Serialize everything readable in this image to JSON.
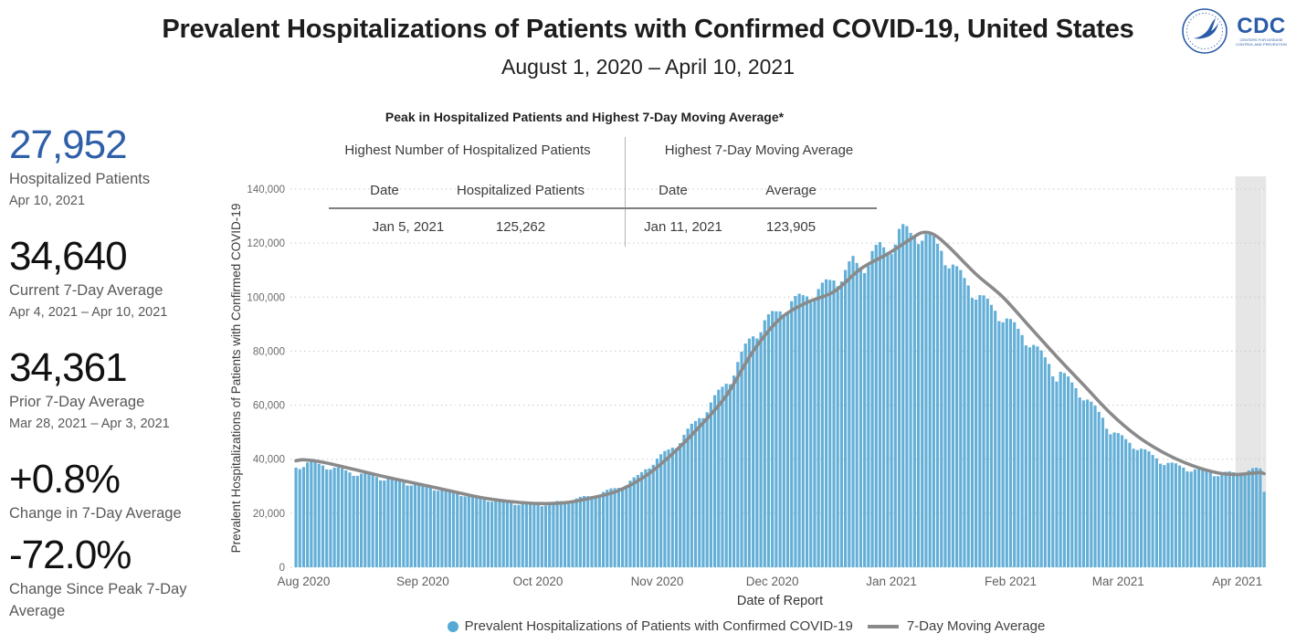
{
  "header": {
    "title": "Prevalent Hospitalizations of Patients with Confirmed COVID-19, United States",
    "subtitle": "August 1, 2020 – April 10, 2021",
    "logos": {
      "cdc_acronym": "CDC",
      "cdc_sub_line1": "CENTERS FOR DISEASE",
      "cdc_sub_line2": "CONTROL AND PREVENTION"
    }
  },
  "stats": {
    "items": [
      {
        "value": "27,952",
        "label": "Hospitalized Patients",
        "sublabel": "Apr 10, 2021",
        "color": "#2e5fa8"
      },
      {
        "value": "34,640",
        "label": "Current 7-Day Average",
        "sublabel": "Apr 4, 2021 – Apr 10, 2021",
        "color": "#111111"
      },
      {
        "value": "34,361",
        "label": "Prior 7-Day Average",
        "sublabel": "Mar 28, 2021 – Apr 3, 2021",
        "color": "#111111"
      },
      {
        "value": "+0.8%",
        "label": "Change in 7-Day Average",
        "sublabel": "",
        "color": "#111111"
      },
      {
        "value": "-72.0%",
        "label": "Change Since Peak 7-Day Average",
        "sublabel": "",
        "color": "#111111"
      }
    ]
  },
  "peak_table": {
    "title": "Peak in Hospitalized Patients and Highest 7-Day Moving Average*",
    "groups": [
      {
        "label": "Highest Number of Hospitalized Patients",
        "col1": "Date",
        "col2": "Hospitalized Patients",
        "date": "Jan 5, 2021",
        "value": "125,262"
      },
      {
        "label": "Highest 7-Day Moving Average",
        "col1": "Date",
        "col2": "Average",
        "date": "Jan 11, 2021",
        "value": "123,905"
      }
    ]
  },
  "axes": {
    "x_title": "Date of Report",
    "y_title": "Prevalent Hospitalizations of Patients with Confirmed COVID-19"
  },
  "legend": {
    "bar_label": "Prevalent Hospitalizations of Patients with Confirmed COVID-19",
    "line_label": "7-Day Moving Average"
  },
  "chart_data": {
    "type": "bar",
    "title": "Prevalent Hospitalizations of Patients with Confirmed COVID-19, United States",
    "xlabel": "Date of Report",
    "ylabel": "Prevalent Hospitalizations of Patients with Confirmed COVID-19",
    "x_start": "2020-08-01",
    "x_end": "2021-04-10",
    "n_days": 253,
    "ylim": [
      0,
      140000
    ],
    "y_ticks": [
      0,
      20000,
      40000,
      60000,
      80000,
      100000,
      120000,
      140000
    ],
    "y_tick_labels": [
      "0",
      "20,000",
      "40,000",
      "60,000",
      "80,000",
      "100,000",
      "120,000",
      "140,000"
    ],
    "x_ticks": [
      {
        "label": "Aug 2020",
        "day": 0
      },
      {
        "label": "Sep 2020",
        "day": 31
      },
      {
        "label": "Oct 2020",
        "day": 61
      },
      {
        "label": "Nov 2020",
        "day": 92
      },
      {
        "label": "Dec 2020",
        "day": 122
      },
      {
        "label": "Jan 2021",
        "day": 153
      },
      {
        "label": "Feb 2021",
        "day": 184
      },
      {
        "label": "Mar 2021",
        "day": 212
      },
      {
        "label": "Apr 2021",
        "day": 243
      }
    ],
    "grid": "horizontal-dotted",
    "legend_position": "bottom-center",
    "series": [
      {
        "name": "Prevalent Hospitalizations of Patients with Confirmed COVID-19",
        "type": "bar",
        "color": "#63afd7",
        "anchors_day_value": [
          [
            0,
            37000
          ],
          [
            3,
            38600
          ],
          [
            7,
            37800
          ],
          [
            14,
            35200
          ],
          [
            21,
            33500
          ],
          [
            28,
            31500
          ],
          [
            31,
            30800
          ],
          [
            38,
            28800
          ],
          [
            45,
            26600
          ],
          [
            52,
            24600
          ],
          [
            59,
            23500
          ],
          [
            63,
            23200
          ],
          [
            66,
            23600
          ],
          [
            70,
            24500
          ],
          [
            77,
            26400
          ],
          [
            84,
            29500
          ],
          [
            89,
            33500
          ],
          [
            92,
            37800
          ],
          [
            99,
            45500
          ],
          [
            106,
            57000
          ],
          [
            113,
            70000
          ],
          [
            118,
            84000
          ],
          [
            122,
            91000
          ],
          [
            129,
            98000
          ],
          [
            136,
            102500
          ],
          [
            143,
            109500
          ],
          [
            145,
            113000
          ],
          [
            147,
            110500
          ],
          [
            150,
            116500
          ],
          [
            152,
            118000
          ],
          [
            154,
            117000
          ],
          [
            157,
            125262
          ],
          [
            158,
            124800
          ],
          [
            160,
            122800
          ],
          [
            163,
            124000
          ],
          [
            165,
            121500
          ],
          [
            168,
            117500
          ],
          [
            172,
            109500
          ],
          [
            176,
            103000
          ],
          [
            180,
            97500
          ],
          [
            184,
            93000
          ],
          [
            191,
            83500
          ],
          [
            196,
            75500
          ],
          [
            198,
            70500
          ],
          [
            199,
            72000
          ],
          [
            203,
            66500
          ],
          [
            210,
            55500
          ],
          [
            212,
            50500
          ],
          [
            219,
            44500
          ],
          [
            226,
            38800
          ],
          [
            233,
            36300
          ],
          [
            240,
            34600
          ],
          [
            243,
            34800
          ],
          [
            246,
            35000
          ],
          [
            249,
            36000
          ],
          [
            251,
            36300
          ],
          [
            252,
            27952
          ]
        ],
        "weekday_multipliers_sat_first": [
          0.997,
          0.968,
          0.975,
          1.005,
          1.018,
          1.02,
          1.008
        ],
        "pinned_days": {
          "157": 125262,
          "252": 27952
        }
      },
      {
        "name": "7-Day Moving Average",
        "type": "line",
        "color": "#8a8a8a",
        "anchors_day_value": [
          [
            0,
            39400
          ],
          [
            2,
            39800
          ],
          [
            7,
            38900
          ],
          [
            14,
            36600
          ],
          [
            21,
            34200
          ],
          [
            28,
            32000
          ],
          [
            35,
            29900
          ],
          [
            42,
            27700
          ],
          [
            49,
            25600
          ],
          [
            56,
            24300
          ],
          [
            63,
            23600
          ],
          [
            70,
            23900
          ],
          [
            77,
            25700
          ],
          [
            84,
            28400
          ],
          [
            91,
            33800
          ],
          [
            98,
            42000
          ],
          [
            105,
            52000
          ],
          [
            112,
            63500
          ],
          [
            119,
            80000
          ],
          [
            126,
            92000
          ],
          [
            133,
            98000
          ],
          [
            140,
            102000
          ],
          [
            147,
            110500
          ],
          [
            154,
            116000
          ],
          [
            160,
            121500
          ],
          [
            163,
            123905
          ],
          [
            166,
            123200
          ],
          [
            170,
            118500
          ],
          [
            177,
            108500
          ],
          [
            184,
            100000
          ],
          [
            191,
            89000
          ],
          [
            198,
            78000
          ],
          [
            205,
            67500
          ],
          [
            212,
            57000
          ],
          [
            219,
            48500
          ],
          [
            226,
            42300
          ],
          [
            233,
            37800
          ],
          [
            240,
            34900
          ],
          [
            245,
            34361
          ],
          [
            248,
            34700
          ],
          [
            251,
            35050
          ],
          [
            252,
            34640
          ]
        ]
      }
    ],
    "highlight_band": {
      "start_day": 245,
      "end_day": 253,
      "color": "#e3e3e3"
    },
    "key_points": {
      "peak_bar": {
        "date": "Jan 5, 2021",
        "value": 125262
      },
      "peak_moving_average": {
        "date": "Jan 11, 2021",
        "value": 123905
      },
      "last_bar": {
        "date": "Apr 10, 2021",
        "value": 27952
      }
    }
  }
}
